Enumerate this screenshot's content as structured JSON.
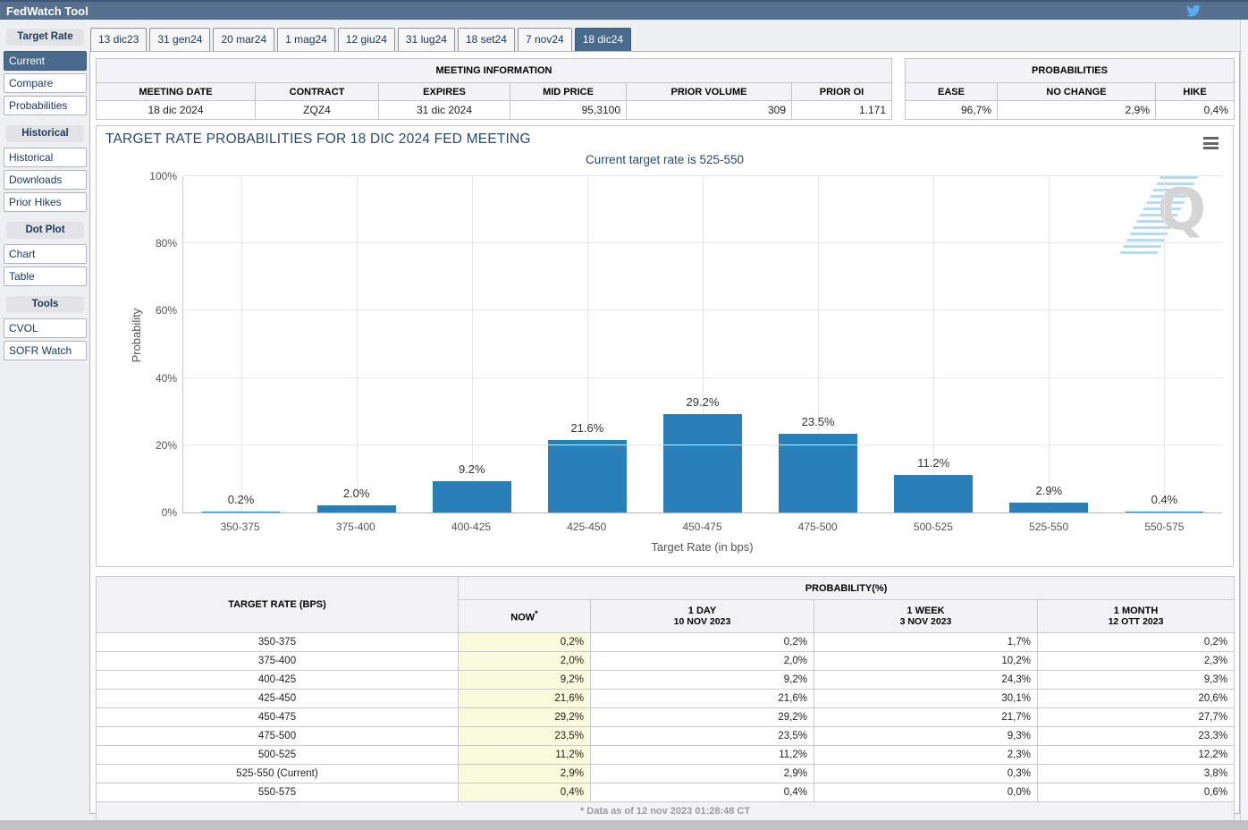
{
  "topbar": {
    "title": "FedWatch Tool"
  },
  "sidebar": {
    "sections": [
      {
        "header": "Target Rate",
        "items": [
          {
            "label": "Current",
            "selected": true
          },
          {
            "label": "Compare",
            "selected": false
          },
          {
            "label": "Probabilities",
            "selected": false
          }
        ]
      },
      {
        "header": "Historical",
        "items": [
          {
            "label": "Historical",
            "selected": false
          },
          {
            "label": "Downloads",
            "selected": false
          },
          {
            "label": "Prior Hikes",
            "selected": false
          }
        ]
      },
      {
        "header": "Dot Plot",
        "items": [
          {
            "label": "Chart",
            "selected": false
          },
          {
            "label": "Table",
            "selected": false
          }
        ]
      },
      {
        "header": "Tools",
        "items": [
          {
            "label": "CVOL",
            "selected": false
          },
          {
            "label": "SOFR Watch",
            "selected": false
          }
        ]
      }
    ]
  },
  "tabs": {
    "items": [
      {
        "label": "13 dic23",
        "selected": false
      },
      {
        "label": "31 gen24",
        "selected": false
      },
      {
        "label": "20 mar24",
        "selected": false
      },
      {
        "label": "1 mag24",
        "selected": false
      },
      {
        "label": "12 giu24",
        "selected": false
      },
      {
        "label": "31 lug24",
        "selected": false
      },
      {
        "label": "18 set24",
        "selected": false
      },
      {
        "label": "7 nov24",
        "selected": false
      },
      {
        "label": "18 dic24",
        "selected": true
      }
    ]
  },
  "meeting_info": {
    "title": "MEETING INFORMATION",
    "columns": [
      "MEETING DATE",
      "CONTRACT",
      "EXPIRES",
      "MID PRICE",
      "PRIOR VOLUME",
      "PRIOR OI"
    ],
    "values": [
      "18 dic 2024",
      "ZQZ4",
      "31 dic 2024",
      "95,3100",
      "309",
      "1.171"
    ],
    "align": [
      "c",
      "c",
      "c",
      "r",
      "r",
      "r"
    ]
  },
  "probabilities_box": {
    "title": "PROBABILITIES",
    "columns": [
      "EASE",
      "NO CHANGE",
      "HIKE"
    ],
    "values": [
      "96,7%",
      "2,9%",
      "0,4%"
    ]
  },
  "chart": {
    "title": "TARGET RATE PROBABILITIES FOR 18 DIC 2024 FED MEETING",
    "subtitle": "Current target rate is 525-550",
    "ylabel": "Probability",
    "xlabel": "Target Rate (in bps)",
    "watermark_letter": "Q"
  },
  "chart_data": {
    "type": "bar",
    "title": "TARGET RATE PROBABILITIES FOR 18 DIC 2024 FED MEETING",
    "subtitle": "Current target rate is 525-550",
    "categories": [
      "350-375",
      "375-400",
      "400-425",
      "425-450",
      "450-475",
      "475-500",
      "500-525",
      "525-550",
      "550-575"
    ],
    "values": [
      0.2,
      2.0,
      9.2,
      21.6,
      29.2,
      23.5,
      11.2,
      2.9,
      0.4
    ],
    "labels": [
      "0.2%",
      "2.0%",
      "9.2%",
      "21.6%",
      "29.2%",
      "23.5%",
      "11.2%",
      "2.9%",
      "0.4%"
    ],
    "xlabel": "Target Rate (in bps)",
    "ylabel": "Probability",
    "ylim": [
      0,
      100
    ],
    "yticks": [
      "0%",
      "20%",
      "40%",
      "60%",
      "80%",
      "100%"
    ],
    "grid": true,
    "legend": "none",
    "bar_color": "#2980b9"
  },
  "probability_table": {
    "rate_header": "TARGET RATE (BPS)",
    "group_header": "PROBABILITY(%)",
    "col_headers": [
      {
        "line1": "NOW",
        "sup": "*",
        "line2": ""
      },
      {
        "line1": "1 DAY",
        "sup": "",
        "line2": "10 NOV 2023"
      },
      {
        "line1": "1 WEEK",
        "sup": "",
        "line2": "3 NOV 2023"
      },
      {
        "line1": "1 MONTH",
        "sup": "",
        "line2": "12 OTT 2023"
      }
    ],
    "rows": [
      [
        "350-375",
        "0,2%",
        "0,2%",
        "1,7%",
        "0,2%"
      ],
      [
        "375-400",
        "2,0%",
        "2,0%",
        "10,2%",
        "2,3%"
      ],
      [
        "400-425",
        "9,2%",
        "9,2%",
        "24,3%",
        "9,3%"
      ],
      [
        "425-450",
        "21,6%",
        "21,6%",
        "30,1%",
        "20,6%"
      ],
      [
        "450-475",
        "29,2%",
        "29,2%",
        "21,7%",
        "27,7%"
      ],
      [
        "475-500",
        "23,5%",
        "23,5%",
        "9,3%",
        "23,3%"
      ],
      [
        "500-525",
        "11,2%",
        "11,2%",
        "2,3%",
        "12,2%"
      ],
      [
        "525-550 (Current)",
        "2,9%",
        "2,9%",
        "0,3%",
        "3,8%"
      ],
      [
        "550-575",
        "0,4%",
        "0,4%",
        "0,0%",
        "0,6%"
      ]
    ],
    "footer": "* Data as of 12 nov 2023 01:28:48 CT"
  },
  "colors": {
    "header_bar": "#587090",
    "accent_selected": "#4a6a8c",
    "bar": "#2980b9",
    "now_highlight": "#fafadc",
    "twitter": "#55acee"
  }
}
